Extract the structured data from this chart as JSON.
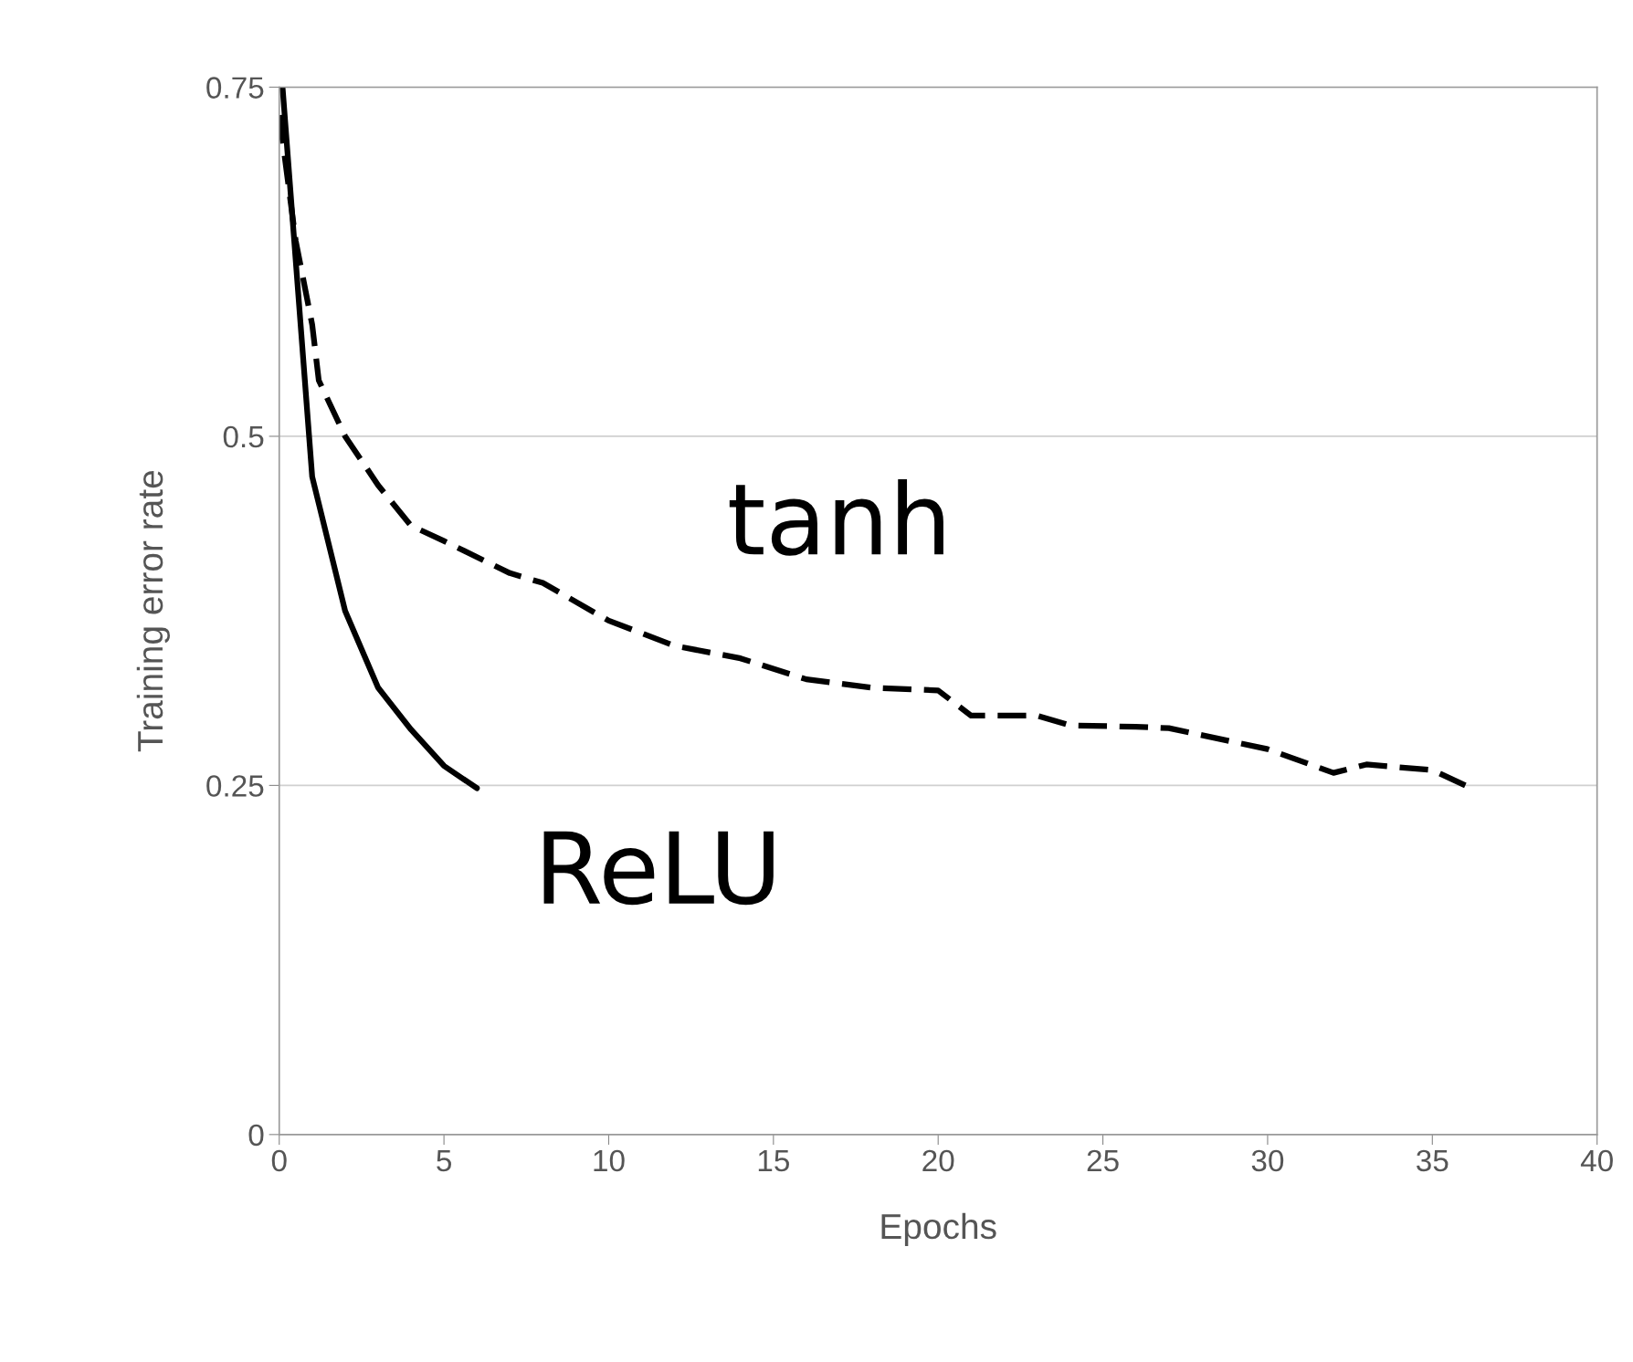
{
  "chart_data": {
    "type": "line",
    "xlabel": "Epochs",
    "ylabel": "Training error rate",
    "series": [
      {
        "name": "tanh",
        "color": "#000000",
        "line_style": "dashed",
        "x": [
          0,
          0.5,
          1,
          1.2,
          2,
          3,
          4,
          5,
          7,
          8,
          10,
          12,
          14,
          16,
          18,
          20,
          21,
          23,
          24,
          26,
          27,
          29,
          30,
          32,
          33,
          35,
          36
        ],
        "values": [
          0.73,
          0.64,
          0.58,
          0.54,
          0.5,
          0.465,
          0.436,
          0.425,
          0.402,
          0.395,
          0.368,
          0.35,
          0.341,
          0.326,
          0.32,
          0.318,
          0.3,
          0.3,
          0.293,
          0.292,
          0.291,
          0.281,
          0.276,
          0.259,
          0.265,
          0.261,
          0.25
        ]
      },
      {
        "name": "ReLU",
        "color": "#000000",
        "line_style": "solid",
        "x": [
          0.1,
          1,
          2,
          3,
          4,
          5,
          6
        ],
        "values": [
          0.75,
          0.471,
          0.375,
          0.32,
          0.29,
          0.264,
          0.248
        ]
      }
    ],
    "xlim": [
      0,
      40
    ],
    "xticks": [
      0,
      5,
      10,
      15,
      20,
      25,
      30,
      35,
      40
    ],
    "ylim": [
      0,
      0.75
    ],
    "yticks": [
      0,
      0.25,
      0.5,
      0.75
    ],
    "grid": "y",
    "legend": false,
    "marker": "none"
  }
}
